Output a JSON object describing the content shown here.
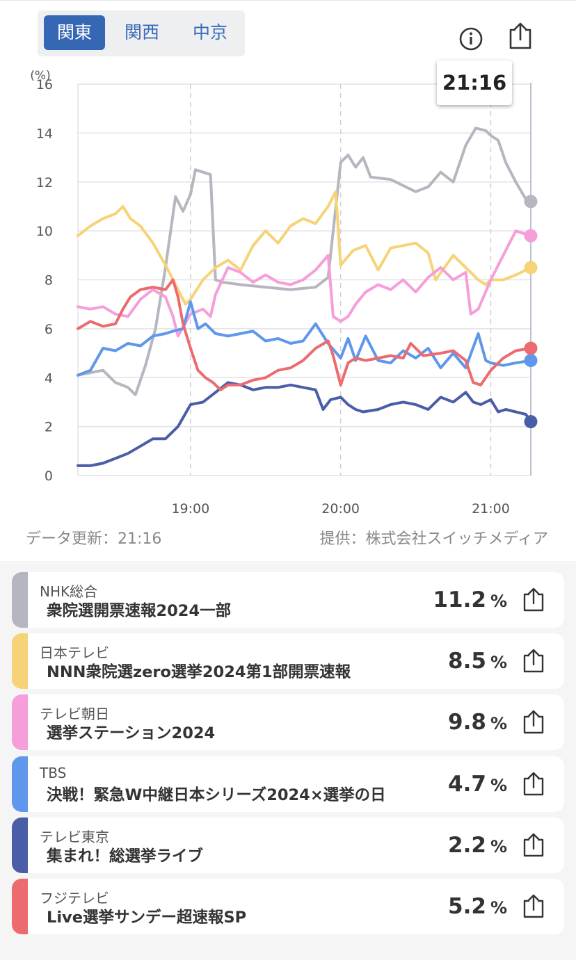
{
  "region_tabs": [
    "関東",
    "関西",
    "中京"
  ],
  "active_region": 0,
  "tooltip_time": "21:16",
  "footer": {
    "updated": "データ更新：21:16",
    "provider": "提供：株式会社スイッチメディア"
  },
  "icons": {
    "info": "info-icon",
    "share": "share-icon"
  },
  "chart_data": {
    "type": "line",
    "ylabel": "(%)",
    "ylim": [
      0,
      16
    ],
    "yticks": [
      0,
      2,
      4,
      6,
      8,
      10,
      12,
      14,
      16
    ],
    "xlim": [
      "18:15",
      "21:16"
    ],
    "xticks": [
      "19:00",
      "20:00",
      "21:00"
    ],
    "grid": true,
    "cursor_time": "21:16",
    "series": [
      {
        "name": "NHK総合",
        "color": "#b5b6bf",
        "points": [
          [
            "18:15",
            4.1
          ],
          [
            "18:20",
            4.2
          ],
          [
            "18:25",
            4.3
          ],
          [
            "18:30",
            3.8
          ],
          [
            "18:35",
            3.6
          ],
          [
            "18:38",
            3.3
          ],
          [
            "18:42",
            4.5
          ],
          [
            "18:46",
            6.0
          ],
          [
            "18:50",
            8.5
          ],
          [
            "18:54",
            11.4
          ],
          [
            "18:57",
            10.8
          ],
          [
            "19:00",
            11.5
          ],
          [
            "19:02",
            12.5
          ],
          [
            "19:05",
            12.4
          ],
          [
            "19:08",
            12.3
          ],
          [
            "19:10",
            8.0
          ],
          [
            "19:13",
            7.9
          ],
          [
            "19:20",
            7.8
          ],
          [
            "19:30",
            7.7
          ],
          [
            "19:40",
            7.6
          ],
          [
            "19:50",
            7.7
          ],
          [
            "19:55",
            8.1
          ],
          [
            "20:00",
            12.8
          ],
          [
            "20:03",
            13.1
          ],
          [
            "20:06",
            12.6
          ],
          [
            "20:09",
            13.0
          ],
          [
            "20:12",
            12.2
          ],
          [
            "20:20",
            12.1
          ],
          [
            "20:30",
            11.6
          ],
          [
            "20:35",
            11.8
          ],
          [
            "20:40",
            12.4
          ],
          [
            "20:45",
            12.0
          ],
          [
            "20:50",
            13.5
          ],
          [
            "20:54",
            14.2
          ],
          [
            "20:58",
            14.1
          ],
          [
            "21:00",
            13.9
          ],
          [
            "21:03",
            13.7
          ],
          [
            "21:06",
            12.8
          ],
          [
            "21:10",
            12.0
          ],
          [
            "21:14",
            11.3
          ],
          [
            "21:16",
            11.2
          ]
        ]
      },
      {
        "name": "日本テレビ",
        "color": "#f7d377",
        "points": [
          [
            "18:15",
            9.8
          ],
          [
            "18:20",
            10.2
          ],
          [
            "18:25",
            10.5
          ],
          [
            "18:30",
            10.7
          ],
          [
            "18:33",
            11.0
          ],
          [
            "18:36",
            10.5
          ],
          [
            "18:40",
            10.2
          ],
          [
            "18:45",
            9.5
          ],
          [
            "18:50",
            8.6
          ],
          [
            "18:54",
            7.8
          ],
          [
            "18:58",
            7.0
          ],
          [
            "19:00",
            7.2
          ],
          [
            "19:05",
            8.0
          ],
          [
            "19:10",
            8.5
          ],
          [
            "19:15",
            8.8
          ],
          [
            "19:20",
            8.4
          ],
          [
            "19:25",
            9.4
          ],
          [
            "19:30",
            10.0
          ],
          [
            "19:35",
            9.5
          ],
          [
            "19:40",
            10.2
          ],
          [
            "19:45",
            10.5
          ],
          [
            "19:50",
            10.3
          ],
          [
            "19:55",
            11.0
          ],
          [
            "19:58",
            11.6
          ],
          [
            "20:00",
            8.6
          ],
          [
            "20:05",
            9.2
          ],
          [
            "20:10",
            9.4
          ],
          [
            "20:15",
            8.4
          ],
          [
            "20:20",
            9.3
          ],
          [
            "20:30",
            9.5
          ],
          [
            "20:35",
            9.1
          ],
          [
            "20:38",
            8.0
          ],
          [
            "20:45",
            9.0
          ],
          [
            "20:50",
            8.5
          ],
          [
            "20:55",
            8.0
          ],
          [
            "20:58",
            7.8
          ],
          [
            "21:00",
            8.0
          ],
          [
            "21:05",
            8.0
          ],
          [
            "21:10",
            8.2
          ],
          [
            "21:14",
            8.4
          ],
          [
            "21:16",
            8.5
          ]
        ]
      },
      {
        "name": "テレビ朝日",
        "color": "#f59ed9",
        "points": [
          [
            "18:15",
            6.9
          ],
          [
            "18:20",
            6.8
          ],
          [
            "18:25",
            6.9
          ],
          [
            "18:30",
            6.6
          ],
          [
            "18:35",
            6.5
          ],
          [
            "18:40",
            7.2
          ],
          [
            "18:45",
            7.6
          ],
          [
            "18:50",
            7.3
          ],
          [
            "18:53",
            6.5
          ],
          [
            "18:55",
            5.7
          ],
          [
            "19:00",
            6.6
          ],
          [
            "19:05",
            6.8
          ],
          [
            "19:08",
            6.5
          ],
          [
            "19:10",
            7.4
          ],
          [
            "19:15",
            8.5
          ],
          [
            "19:20",
            8.3
          ],
          [
            "19:25",
            7.9
          ],
          [
            "19:30",
            8.2
          ],
          [
            "19:35",
            7.9
          ],
          [
            "19:40",
            7.8
          ],
          [
            "19:45",
            8.0
          ],
          [
            "19:50",
            8.4
          ],
          [
            "19:55",
            9.0
          ],
          [
            "19:57",
            6.5
          ],
          [
            "20:00",
            6.3
          ],
          [
            "20:03",
            6.5
          ],
          [
            "20:06",
            7.0
          ],
          [
            "20:10",
            7.5
          ],
          [
            "20:15",
            7.8
          ],
          [
            "20:20",
            7.6
          ],
          [
            "20:25",
            8.0
          ],
          [
            "20:30",
            7.5
          ],
          [
            "20:35",
            8.1
          ],
          [
            "20:40",
            8.5
          ],
          [
            "20:45",
            8.0
          ],
          [
            "20:50",
            8.3
          ],
          [
            "20:52",
            6.6
          ],
          [
            "20:55",
            6.8
          ],
          [
            "21:00",
            8.0
          ],
          [
            "21:05",
            9.0
          ],
          [
            "21:10",
            10.0
          ],
          [
            "21:16",
            9.8
          ]
        ]
      },
      {
        "name": "TBS",
        "color": "#5f97ec",
        "points": [
          [
            "18:15",
            4.1
          ],
          [
            "18:20",
            4.3
          ],
          [
            "18:25",
            5.2
          ],
          [
            "18:30",
            5.1
          ],
          [
            "18:35",
            5.4
          ],
          [
            "18:40",
            5.3
          ],
          [
            "18:45",
            5.7
          ],
          [
            "18:50",
            5.8
          ],
          [
            "18:53",
            5.9
          ],
          [
            "18:57",
            6.0
          ],
          [
            "19:00",
            7.1
          ],
          [
            "19:03",
            6.0
          ],
          [
            "19:06",
            6.2
          ],
          [
            "19:10",
            5.8
          ],
          [
            "19:15",
            5.7
          ],
          [
            "19:20",
            5.8
          ],
          [
            "19:25",
            5.9
          ],
          [
            "19:30",
            5.5
          ],
          [
            "19:35",
            5.6
          ],
          [
            "19:40",
            5.4
          ],
          [
            "19:45",
            5.5
          ],
          [
            "19:50",
            6.2
          ],
          [
            "19:55",
            5.4
          ],
          [
            "20:00",
            4.8
          ],
          [
            "20:03",
            5.6
          ],
          [
            "20:06",
            4.7
          ],
          [
            "20:10",
            5.7
          ],
          [
            "20:15",
            4.7
          ],
          [
            "20:20",
            4.6
          ],
          [
            "20:25",
            5.1
          ],
          [
            "20:30",
            4.8
          ],
          [
            "20:35",
            5.2
          ],
          [
            "20:40",
            4.4
          ],
          [
            "20:45",
            5.0
          ],
          [
            "20:50",
            4.4
          ],
          [
            "20:55",
            5.8
          ],
          [
            "20:58",
            4.7
          ],
          [
            "21:00",
            4.6
          ],
          [
            "21:05",
            4.5
          ],
          [
            "21:10",
            4.6
          ],
          [
            "21:16",
            4.7
          ]
        ]
      },
      {
        "name": "テレビ東京",
        "color": "#4a5ea8",
        "points": [
          [
            "18:15",
            0.4
          ],
          [
            "18:20",
            0.4
          ],
          [
            "18:25",
            0.5
          ],
          [
            "18:30",
            0.7
          ],
          [
            "18:35",
            0.9
          ],
          [
            "18:40",
            1.2
          ],
          [
            "18:45",
            1.5
          ],
          [
            "18:50",
            1.5
          ],
          [
            "18:55",
            2.0
          ],
          [
            "19:00",
            2.9
          ],
          [
            "19:05",
            3.0
          ],
          [
            "19:10",
            3.4
          ],
          [
            "19:15",
            3.8
          ],
          [
            "19:20",
            3.7
          ],
          [
            "19:25",
            3.5
          ],
          [
            "19:30",
            3.6
          ],
          [
            "19:35",
            3.6
          ],
          [
            "19:40",
            3.7
          ],
          [
            "19:45",
            3.6
          ],
          [
            "19:50",
            3.5
          ],
          [
            "19:53",
            2.7
          ],
          [
            "19:56",
            3.1
          ],
          [
            "20:00",
            3.2
          ],
          [
            "20:03",
            2.9
          ],
          [
            "20:06",
            2.7
          ],
          [
            "20:09",
            2.6
          ],
          [
            "20:15",
            2.7
          ],
          [
            "20:20",
            2.9
          ],
          [
            "20:25",
            3.0
          ],
          [
            "20:30",
            2.9
          ],
          [
            "20:35",
            2.7
          ],
          [
            "20:40",
            3.2
          ],
          [
            "20:45",
            3.0
          ],
          [
            "20:50",
            3.4
          ],
          [
            "20:53",
            3.0
          ],
          [
            "20:56",
            2.9
          ],
          [
            "21:00",
            3.1
          ],
          [
            "21:03",
            2.6
          ],
          [
            "21:06",
            2.7
          ],
          [
            "21:10",
            2.6
          ],
          [
            "21:14",
            2.5
          ],
          [
            "21:16",
            2.2
          ]
        ]
      },
      {
        "name": "フジテレビ",
        "color": "#eb6b6f",
        "points": [
          [
            "18:15",
            6.0
          ],
          [
            "18:20",
            6.3
          ],
          [
            "18:25",
            6.1
          ],
          [
            "18:30",
            6.2
          ],
          [
            "18:33",
            6.8
          ],
          [
            "18:36",
            7.3
          ],
          [
            "18:40",
            7.6
          ],
          [
            "18:45",
            7.7
          ],
          [
            "18:50",
            7.6
          ],
          [
            "18:53",
            8.0
          ],
          [
            "18:55",
            7.3
          ],
          [
            "18:57",
            6.2
          ],
          [
            "19:00",
            5.2
          ],
          [
            "19:03",
            4.3
          ],
          [
            "19:06",
            4.0
          ],
          [
            "19:09",
            3.8
          ],
          [
            "19:12",
            3.5
          ],
          [
            "19:15",
            3.7
          ],
          [
            "19:20",
            3.7
          ],
          [
            "19:25",
            3.9
          ],
          [
            "19:30",
            4.0
          ],
          [
            "19:35",
            4.3
          ],
          [
            "19:40",
            4.4
          ],
          [
            "19:45",
            4.7
          ],
          [
            "19:50",
            5.2
          ],
          [
            "19:55",
            5.5
          ],
          [
            "19:57",
            4.9
          ],
          [
            "20:00",
            3.7
          ],
          [
            "20:03",
            4.6
          ],
          [
            "20:06",
            4.8
          ],
          [
            "20:10",
            4.7
          ],
          [
            "20:15",
            4.8
          ],
          [
            "20:20",
            4.9
          ],
          [
            "20:25",
            4.8
          ],
          [
            "20:28",
            5.4
          ],
          [
            "20:33",
            4.9
          ],
          [
            "20:40",
            5.0
          ],
          [
            "20:45",
            5.1
          ],
          [
            "20:50",
            4.7
          ],
          [
            "20:53",
            3.8
          ],
          [
            "20:56",
            3.7
          ],
          [
            "21:00",
            4.3
          ],
          [
            "21:05",
            4.8
          ],
          [
            "21:10",
            5.1
          ],
          [
            "21:16",
            5.2
          ]
        ]
      }
    ]
  },
  "programs": [
    {
      "station": "NHK総合",
      "title": "衆院選開票速報2024一部",
      "rating": "11.2",
      "unit": "%",
      "color": "#b5b6bf"
    },
    {
      "station": "日本テレビ",
      "title": "NNN衆院選zero選挙2024第1部開票速報",
      "rating": "8.5",
      "unit": "%",
      "color": "#f7d377"
    },
    {
      "station": "テレビ朝日",
      "title": "選挙ステーション2024",
      "rating": "9.8",
      "unit": "%",
      "color": "#f59ed9"
    },
    {
      "station": "TBS",
      "title": "決戦！緊急W中継日本シリーズ2024×選挙の日",
      "rating": "4.7",
      "unit": "%",
      "color": "#5f97ec"
    },
    {
      "station": "テレビ東京",
      "title": "集まれ！総選挙ライブ",
      "rating": "2.2",
      "unit": "%",
      "color": "#4a5ea8"
    },
    {
      "station": "フジテレビ",
      "title": "Live選挙サンデー超速報SP",
      "rating": "5.2",
      "unit": "%",
      "color": "#eb6b6f"
    }
  ]
}
